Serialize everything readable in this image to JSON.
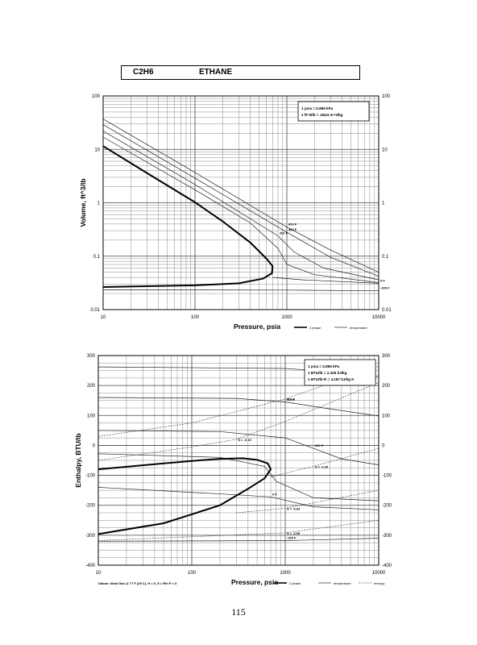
{
  "header": {
    "formula": "C2H6",
    "name": "ETHANE"
  },
  "page_number": "115",
  "chart_data": [
    {
      "type": "line",
      "xscale": "log",
      "yscale": "log",
      "xlabel": "Pressure,  psia",
      "ylabel": "Volume, ft^3/lb",
      "xlim": [
        10,
        10000
      ],
      "ylim": [
        0.01,
        100
      ],
      "grid": true,
      "x_ticks": [
        "10",
        "100",
        "1000",
        "10000"
      ],
      "y_ticks": [
        "0.01",
        "0.1",
        "1",
        "10",
        "100"
      ],
      "conversion_box": [
        "1 psia = 6.895 kPa",
        "1 ft^3/lb = .0624 m^3/kg"
      ],
      "legend": [
        "2 phase",
        "temperature"
      ],
      "saturation_dome": {
        "name": "2 phase",
        "points": [
          [
            10,
            11.5
          ],
          [
            30,
            3.6
          ],
          [
            100,
            1.02
          ],
          [
            200,
            0.45
          ],
          [
            400,
            0.18
          ],
          [
            600,
            0.09
          ],
          [
            700,
            0.065
          ],
          [
            690,
            0.048
          ],
          [
            550,
            0.038
          ],
          [
            300,
            0.031
          ],
          [
            100,
            0.0285
          ],
          [
            10,
            0.0265
          ]
        ]
      },
      "isotherms": [
        {
          "name": "600 F",
          "points": [
            [
              10,
              37
            ],
            [
              100,
              3.7
            ],
            [
              1000,
              0.35
            ],
            [
              3000,
              0.13
            ],
            [
              10000,
              0.05
            ]
          ]
        },
        {
          "name": "400 F",
          "points": [
            [
              10,
              29
            ],
            [
              100,
              2.9
            ],
            [
              1000,
              0.28
            ],
            [
              3000,
              0.095
            ],
            [
              10000,
              0.042
            ]
          ]
        },
        {
          "name": "200 F",
          "points": [
            [
              10,
              22
            ],
            [
              100,
              2.2
            ],
            [
              800,
              0.24
            ],
            [
              1200,
              0.12
            ],
            [
              2500,
              0.06
            ],
            [
              10000,
              0.036
            ]
          ]
        },
        {
          "name": "",
          "points": [
            [
              10,
              17
            ],
            [
              100,
              1.75
            ],
            [
              400,
              0.42
            ],
            [
              800,
              0.14
            ],
            [
              1000,
              0.07
            ],
            [
              2000,
              0.045
            ],
            [
              10000,
              0.032
            ]
          ]
        },
        {
          "name": "0 F",
          "points": [
            [
              700,
              0.04
            ],
            [
              1500,
              0.036
            ],
            [
              10000,
              0.031
            ]
          ]
        },
        {
          "name": "-200 F",
          "points": [
            [
              10,
              0.0235
            ],
            [
              1000,
              0.0232
            ],
            [
              10000,
              0.0225
            ]
          ]
        }
      ]
    },
    {
      "type": "line",
      "xscale": "log",
      "yscale": "linear",
      "xlabel": "Pressure,  psia",
      "ylabel": "Enthalpy, BTU/lb",
      "xlim": [
        10,
        10000
      ],
      "ylim": [
        -400,
        300
      ],
      "grid": true,
      "x_ticks": [
        "10",
        "100",
        "1000",
        "10000"
      ],
      "y_ticks": [
        "-400",
        "-300",
        "-200",
        "-100",
        "0",
        "100",
        "200",
        "300"
      ],
      "conversion_box": [
        "1 psia = 6.895 kPa",
        "1 BTU/lb = 2.326 kJ/kg",
        "1 BTU/lb R = 4.187 kJ/kg K"
      ],
      "footnote": "Datum: Ideal Gas @ 77 F (25 C),  H = 0,  S = Rln P = 0",
      "legend": [
        "2 phase",
        "temperature",
        "entropy"
      ],
      "saturation_dome": {
        "name": "2 phase",
        "points": [
          [
            10,
            -296
          ],
          [
            50,
            -260
          ],
          [
            100,
            -230
          ],
          [
            200,
            -200
          ],
          [
            400,
            -145
          ],
          [
            600,
            -110
          ],
          [
            700,
            -80
          ],
          [
            650,
            -60
          ],
          [
            500,
            -48
          ],
          [
            350,
            -43
          ],
          [
            200,
            -45
          ],
          [
            100,
            -52
          ],
          [
            50,
            -60
          ],
          [
            10,
            -80
          ]
        ]
      },
      "isotherms": [
        {
          "name": "600 F",
          "points": [
            [
              10,
              262
            ],
            [
              1000,
              257
            ],
            [
              4000,
              244
            ],
            [
              10000,
              230
            ]
          ]
        },
        {
          "name": "400 F",
          "points": [
            [
              10,
              160
            ],
            [
              300,
              157
            ],
            [
              1000,
              145
            ],
            [
              3000,
              122
            ],
            [
              10000,
              98
            ]
          ]
        },
        {
          "name": "200 F",
          "points": [
            [
              10,
              50
            ],
            [
              200,
              46
            ],
            [
              1000,
              25
            ],
            [
              2000,
              -10
            ],
            [
              4000,
              -45
            ],
            [
              10000,
              -65
            ]
          ]
        },
        {
          "name": "",
          "points": [
            [
              10,
              -28
            ],
            [
              200,
              -40
            ],
            [
              600,
              -70
            ],
            [
              800,
              -120
            ],
            [
              2000,
              -175
            ],
            [
              10000,
              -185
            ]
          ]
        },
        {
          "name": "0 F",
          "points": [
            [
              10,
              -140
            ],
            [
              300,
              -165
            ],
            [
              700,
              -172
            ],
            [
              2000,
              -205
            ],
            [
              10000,
              -215
            ]
          ]
        },
        {
          "name": "-200 F",
          "points": [
            [
              10,
              -320
            ],
            [
              1000,
              -318
            ],
            [
              10000,
              -310
            ]
          ]
        }
      ],
      "isentropes": [
        {
          "name": "S = 0",
          "points": [
            [
              10,
              30
            ],
            [
              100,
              75
            ],
            [
              1000,
              155
            ],
            [
              10000,
              265
            ]
          ]
        },
        {
          "name": "S = -0.15",
          "points": [
            [
              10,
              -50
            ],
            [
              100,
              -5
            ],
            [
              300,
              20
            ],
            [
              1000,
              80
            ],
            [
              10000,
              210
            ]
          ]
        },
        {
          "name": "S = -0.39",
          "points": [
            [
              700,
              -105
            ],
            [
              2000,
              -70
            ],
            [
              10000,
              -10
            ]
          ]
        },
        {
          "name": "S = -0.64",
          "points": [
            [
              300,
              -225
            ],
            [
              1000,
              -210
            ],
            [
              10000,
              -150
            ]
          ]
        },
        {
          "name": "S = -0.99",
          "points": [
            [
              10,
              -318
            ],
            [
              1000,
              -292
            ],
            [
              10000,
              -250
            ]
          ]
        }
      ]
    }
  ]
}
